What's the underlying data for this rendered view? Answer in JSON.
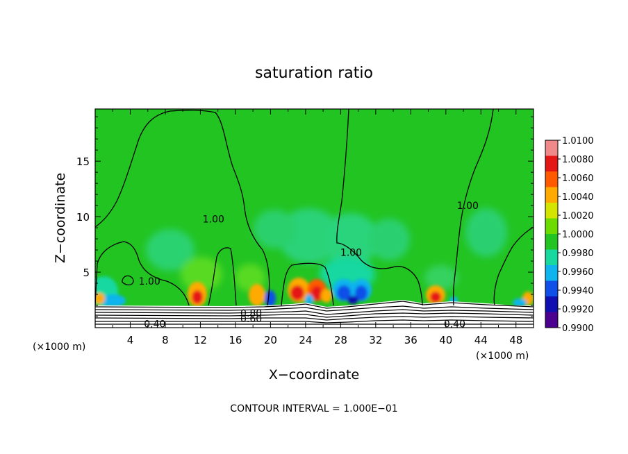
{
  "chart_data": {
    "type": "heatmap",
    "title": "saturation ratio",
    "xlabel": "X−coordinate",
    "ylabel": "Z−coordinate",
    "x_unit_label": "(×1000 m)",
    "xlim": [
      0,
      50
    ],
    "ylim": [
      0,
      19.7
    ],
    "x_ticks": [
      4,
      8,
      12,
      16,
      20,
      24,
      28,
      32,
      36,
      40,
      44,
      48
    ],
    "x_tick_labels": [
      "4",
      "8",
      "12",
      "16",
      "20",
      "24",
      "28",
      "32",
      "36",
      "40",
      "44",
      "48"
    ],
    "y_ticks": [
      5,
      10,
      15
    ],
    "y_tick_labels": [
      "5",
      "10",
      "15"
    ],
    "footer": "CONTOUR INTERVAL = 1.000E−01",
    "colorbar": {
      "levels": [
        "1.0100",
        "1.0080",
        "1.0060",
        "1.0040",
        "1.0020",
        "1.0000",
        "0.9980",
        "0.9960",
        "0.9940",
        "0.9920",
        "0.9900"
      ],
      "colors": [
        "#f08a8a",
        "#e51616",
        "#ff5a00",
        "#ffaa00",
        "#d4e600",
        "#6cdc00",
        "#22c422",
        "#18d8a0",
        "#0fb4ee",
        "#1050e8",
        "#1010b0",
        "#4b0090"
      ]
    },
    "contour_labels": [
      {
        "text": "1.00",
        "x": 13.5,
        "z": 9.8
      },
      {
        "text": "1.00",
        "x": 6.2,
        "z": 4.2
      },
      {
        "text": "1.00",
        "x": 29.2,
        "z": 6.8
      },
      {
        "text": "1.00",
        "x": 42.5,
        "z": 11.0
      },
      {
        "text": "0.80",
        "x": 17.8,
        "z": 1.3
      },
      {
        "text": "0.60",
        "x": 17.8,
        "z": 0.8
      },
      {
        "text": "0.40",
        "x": 6.8,
        "z": 0.35
      },
      {
        "text": "0.40",
        "x": 41.0,
        "z": 0.35
      }
    ]
  }
}
